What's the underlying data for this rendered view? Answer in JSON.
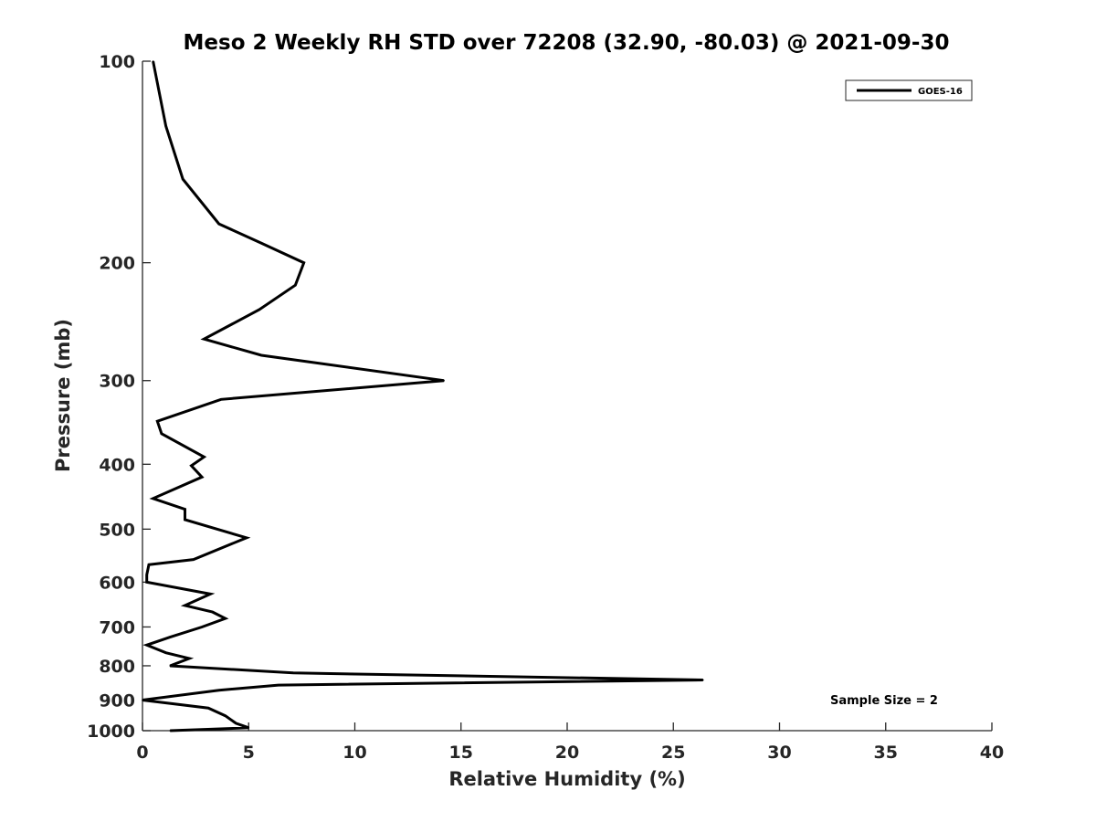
{
  "chart_data": {
    "type": "line",
    "title": "Meso 2 Weekly RH STD over 72208 (32.90, -80.03) @ 2021-09-30",
    "xlabel": "Relative Humidity (%)",
    "ylabel": "Pressure (mb)",
    "xlim": [
      0,
      40
    ],
    "ylim": [
      100,
      1000
    ],
    "yscale": "log",
    "yreversed": true,
    "x_ticks": [
      0,
      5,
      10,
      15,
      20,
      25,
      30,
      35,
      40
    ],
    "x_tick_labels": [
      "0",
      "5",
      "10",
      "15",
      "20",
      "25",
      "30",
      "35",
      "40"
    ],
    "y_ticks": [
      100,
      200,
      300,
      400,
      500,
      600,
      700,
      800,
      900,
      1000
    ],
    "y_tick_labels": [
      "100",
      "200",
      "300",
      "400",
      "500",
      "600",
      "700",
      "800",
      "900",
      "1000"
    ],
    "legend": {
      "location": "top-right",
      "entries": [
        "GOES-16"
      ]
    },
    "annotation": "Sample Size = 2",
    "series": [
      {
        "name": "GOES-16",
        "color": "#000000",
        "points": [
          [
            0.5,
            100
          ],
          [
            1.1,
            125
          ],
          [
            1.9,
            150
          ],
          [
            3.6,
            175
          ],
          [
            5.6,
            187
          ],
          [
            7.6,
            200
          ],
          [
            7.2,
            216
          ],
          [
            5.5,
            235
          ],
          [
            2.9,
            260
          ],
          [
            5.6,
            275
          ],
          [
            14.2,
            300
          ],
          [
            3.7,
            320
          ],
          [
            0.7,
            345
          ],
          [
            0.9,
            360
          ],
          [
            2.9,
            390
          ],
          [
            2.3,
            402
          ],
          [
            2.8,
            418
          ],
          [
            0.5,
            450
          ],
          [
            2.0,
            467
          ],
          [
            2.0,
            484
          ],
          [
            4.9,
            515
          ],
          [
            2.4,
            555
          ],
          [
            0.3,
            565
          ],
          [
            0.2,
            585
          ],
          [
            0.2,
            600
          ],
          [
            3.2,
            625
          ],
          [
            2.0,
            650
          ],
          [
            3.3,
            665
          ],
          [
            3.9,
            680
          ],
          [
            2.8,
            700
          ],
          [
            1.3,
            725
          ],
          [
            0.2,
            745
          ],
          [
            1.1,
            765
          ],
          [
            2.2,
            780
          ],
          [
            1.3,
            800
          ],
          [
            7.1,
            820
          ],
          [
            26.4,
            840
          ],
          [
            6.4,
            855
          ],
          [
            3.6,
            870
          ],
          [
            0.0,
            900
          ],
          [
            3.1,
            925
          ],
          [
            3.9,
            950
          ],
          [
            4.4,
            975
          ],
          [
            5.0,
            990
          ],
          [
            1.3,
            1000
          ]
        ]
      }
    ]
  }
}
